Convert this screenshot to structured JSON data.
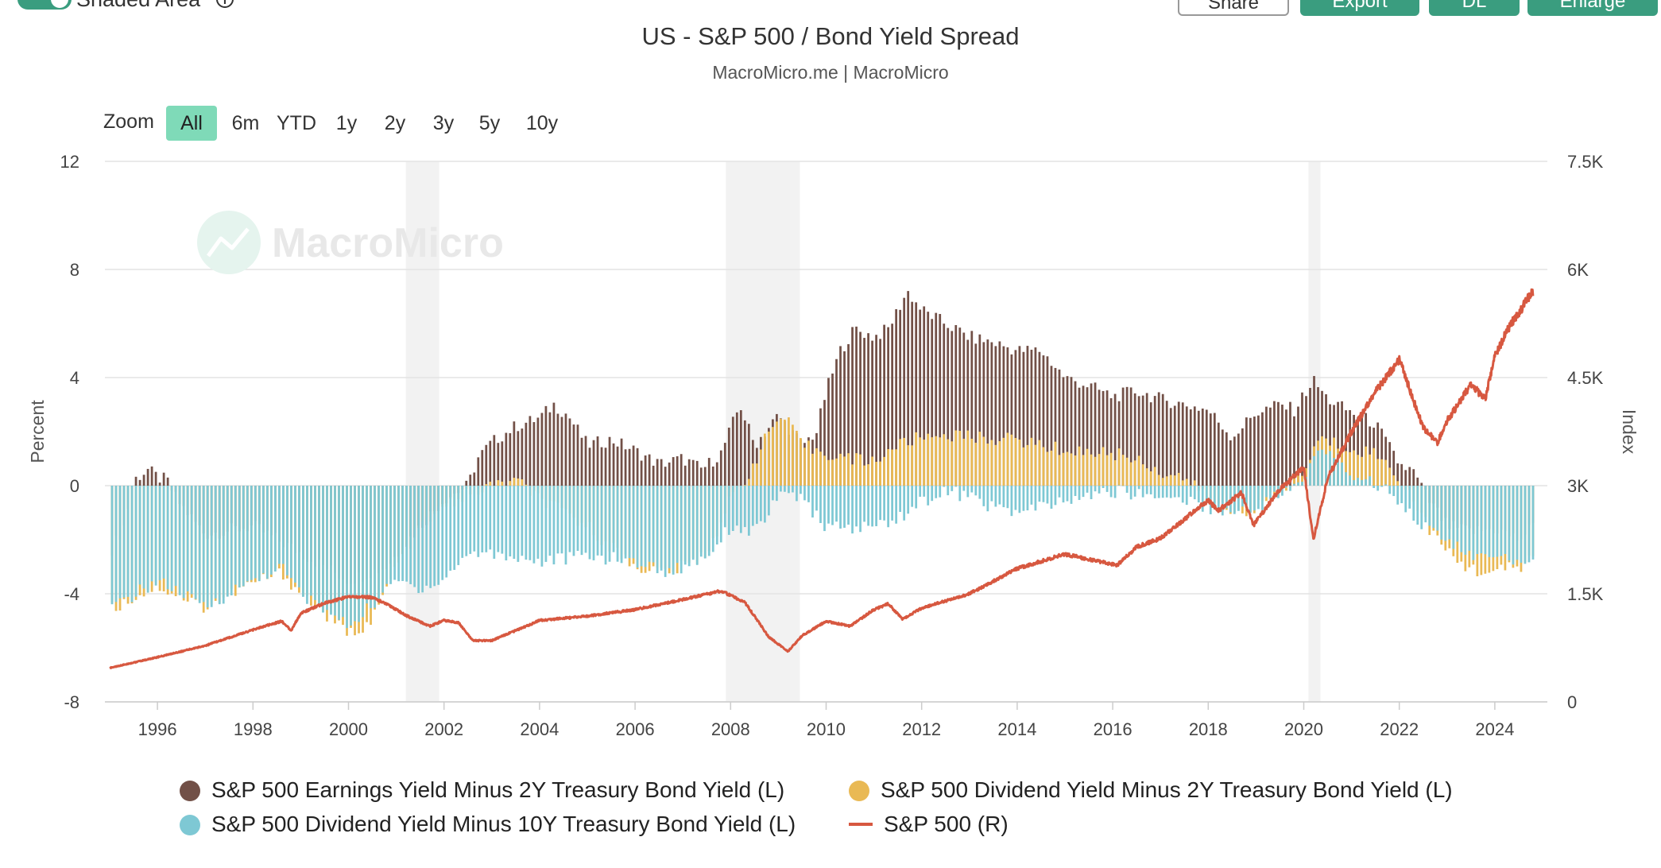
{
  "toolbar": {
    "toggle_label": "Shaded Area",
    "share_label": "Share",
    "export_label": "Export",
    "dl_label": "DL",
    "enlarge_label": "Enlarge"
  },
  "zoom": {
    "label": "Zoom",
    "options": [
      "All",
      "6m",
      "YTD",
      "1y",
      "2y",
      "3y",
      "5y",
      "10y"
    ],
    "active": "All"
  },
  "watermark": "MacroMicro",
  "colors": {
    "earn2y": "#725047",
    "div2y": "#e9b954",
    "div10y": "#7ec8d4",
    "sp500": "#d75840",
    "active_zoom": "#7fdab8",
    "button": "#3a9d7f"
  },
  "chart_data": {
    "type": "bar",
    "title": "US - S&P 500 / Bond Yield Spread",
    "subtitle": "MacroMicro.me | MacroMicro",
    "ylabel_left": "Percent",
    "ylabel_right": "Index",
    "ylim_left": [
      -8,
      12
    ],
    "ylim_right": [
      0,
      7500
    ],
    "yticks_left": [
      "12",
      "8",
      "4",
      "0",
      "-4",
      "-8"
    ],
    "yticks_right": [
      "7.5K",
      "6K",
      "4.5K",
      "3K",
      "1.5K",
      "0"
    ],
    "xlim": [
      1994.9,
      2025.1
    ],
    "xticks": [
      "1996",
      "1998",
      "2000",
      "2002",
      "2004",
      "2006",
      "2008",
      "2010",
      "2012",
      "2014",
      "2016",
      "2018",
      "2020",
      "2022",
      "2024"
    ],
    "grid": true,
    "legend_position": "bottom",
    "shaded_periods": [
      [
        2001.2,
        2001.9
      ],
      [
        2007.9,
        2009.45
      ],
      [
        2020.1,
        2020.35
      ]
    ],
    "series": [
      {
        "name": "S&P 500 Earnings Yield Minus 2Y Treasury Bond Yield (L)",
        "kind": "bar",
        "points": [
          [
            1995.0,
            -2.5
          ],
          [
            1995.3,
            -1.5
          ],
          [
            1995.5,
            0.2
          ],
          [
            1995.8,
            0.6
          ],
          [
            1996.0,
            0.3
          ],
          [
            1996.2,
            0.2
          ],
          [
            1996.4,
            -0.5
          ],
          [
            1997.0,
            -1.8
          ],
          [
            1998.0,
            -1.5
          ],
          [
            1999.0,
            -2.5
          ],
          [
            2000.0,
            -3.5
          ],
          [
            2000.8,
            -3.0
          ],
          [
            2001.5,
            -1.5
          ],
          [
            2002.0,
            -0.5
          ],
          [
            2002.5,
            0.0
          ],
          [
            2002.7,
            1.0
          ],
          [
            2003.0,
            1.6
          ],
          [
            2003.5,
            2.2
          ],
          [
            2004.0,
            2.5
          ],
          [
            2004.3,
            3.0
          ],
          [
            2004.6,
            2.6
          ],
          [
            2005.0,
            1.5
          ],
          [
            2005.5,
            1.7
          ],
          [
            2006.0,
            1.3
          ],
          [
            2006.5,
            0.8
          ],
          [
            2007.0,
            1.0
          ],
          [
            2007.4,
            0.6
          ],
          [
            2007.8,
            1.2
          ],
          [
            2008.2,
            3.0
          ],
          [
            2008.5,
            1.5
          ],
          [
            2009.0,
            2.6
          ],
          [
            2009.5,
            1.5
          ],
          [
            2009.8,
            2.0
          ],
          [
            2010.0,
            3.5
          ],
          [
            2010.3,
            5.0
          ],
          [
            2010.6,
            5.8
          ],
          [
            2011.0,
            5.5
          ],
          [
            2011.3,
            5.8
          ],
          [
            2011.7,
            7.2
          ],
          [
            2012.0,
            6.5
          ],
          [
            2012.5,
            6.0
          ],
          [
            2013.0,
            5.5
          ],
          [
            2013.5,
            5.3
          ],
          [
            2014.0,
            5.0
          ],
          [
            2014.5,
            5.0
          ],
          [
            2015.0,
            4.0
          ],
          [
            2015.5,
            3.7
          ],
          [
            2016.0,
            3.3
          ],
          [
            2016.5,
            3.5
          ],
          [
            2017.0,
            3.2
          ],
          [
            2017.5,
            3.0
          ],
          [
            2018.0,
            2.8
          ],
          [
            2018.5,
            1.8
          ],
          [
            2019.0,
            2.7
          ],
          [
            2019.5,
            3.0
          ],
          [
            2019.8,
            2.8
          ],
          [
            2020.2,
            3.9
          ],
          [
            2020.5,
            3.2
          ],
          [
            2021.0,
            2.7
          ],
          [
            2021.5,
            2.3
          ],
          [
            2022.0,
            0.8
          ],
          [
            2022.3,
            0.5
          ],
          [
            2022.6,
            -0.5
          ],
          [
            2023.0,
            -1.5
          ],
          [
            2023.5,
            -1.7
          ],
          [
            2024.0,
            -1.6
          ],
          [
            2024.5,
            -2.0
          ],
          [
            2024.8,
            -1.5
          ]
        ]
      },
      {
        "name": "S&P 500 Dividend Yield Minus 2Y Treasury Bond Yield (L)",
        "kind": "bar",
        "points": [
          [
            1995.0,
            -4.6
          ],
          [
            1996.0,
            -3.7
          ],
          [
            1997.0,
            -4.5
          ],
          [
            1998.0,
            -3.6
          ],
          [
            1998.6,
            -3.2
          ],
          [
            1999.0,
            -4.0
          ],
          [
            2000.0,
            -5.5
          ],
          [
            2000.5,
            -5.0
          ],
          [
            2001.0,
            -3.0
          ],
          [
            2001.5,
            -1.5
          ],
          [
            2002.0,
            -0.8
          ],
          [
            2002.5,
            -0.3
          ],
          [
            2003.0,
            0.0
          ],
          [
            2003.5,
            0.2
          ],
          [
            2004.0,
            -0.5
          ],
          [
            2005.0,
            -1.5
          ],
          [
            2006.0,
            -3.0
          ],
          [
            2006.7,
            -3.2
          ],
          [
            2007.0,
            -3.0
          ],
          [
            2007.5,
            -2.5
          ],
          [
            2008.0,
            -0.5
          ],
          [
            2008.4,
            0.5
          ],
          [
            2008.8,
            2.0
          ],
          [
            2009.1,
            2.6
          ],
          [
            2009.5,
            1.5
          ],
          [
            2010.0,
            1.2
          ],
          [
            2010.5,
            1.0
          ],
          [
            2011.0,
            0.9
          ],
          [
            2011.5,
            1.5
          ],
          [
            2012.0,
            1.8
          ],
          [
            2012.5,
            1.9
          ],
          [
            2013.0,
            1.8
          ],
          [
            2014.0,
            1.7
          ],
          [
            2015.0,
            1.3
          ],
          [
            2016.0,
            1.2
          ],
          [
            2016.5,
            1.0
          ],
          [
            2017.0,
            0.5
          ],
          [
            2017.5,
            0.3
          ],
          [
            2018.0,
            -0.5
          ],
          [
            2018.5,
            -1.0
          ],
          [
            2019.0,
            -0.8
          ],
          [
            2019.5,
            -0.3
          ],
          [
            2020.0,
            0.5
          ],
          [
            2020.3,
            1.7
          ],
          [
            2020.6,
            1.6
          ],
          [
            2021.0,
            1.4
          ],
          [
            2021.5,
            1.2
          ],
          [
            2022.0,
            0.3
          ],
          [
            2022.3,
            -0.5
          ],
          [
            2022.6,
            -1.5
          ],
          [
            2023.0,
            -2.5
          ],
          [
            2023.5,
            -3.1
          ],
          [
            2024.0,
            -3.2
          ],
          [
            2024.5,
            -3.0
          ],
          [
            2024.8,
            -2.7
          ]
        ]
      },
      {
        "name": "S&P 500 Dividend Yield Minus 10Y Treasury Bond Yield (L)",
        "kind": "bar",
        "points": [
          [
            1995.0,
            -4.6
          ],
          [
            1996.0,
            -3.5
          ],
          [
            1997.0,
            -4.5
          ],
          [
            1998.0,
            -3.5
          ],
          [
            1998.6,
            -3.0
          ],
          [
            1999.0,
            -4.0
          ],
          [
            2000.0,
            -5.2
          ],
          [
            2000.5,
            -4.4
          ],
          [
            2001.0,
            -3.5
          ],
          [
            2001.5,
            -3.8
          ],
          [
            2002.0,
            -3.5
          ],
          [
            2002.5,
            -2.5
          ],
          [
            2003.0,
            -2.5
          ],
          [
            2004.0,
            -2.8
          ],
          [
            2005.0,
            -2.6
          ],
          [
            2006.0,
            -2.8
          ],
          [
            2006.7,
            -3.2
          ],
          [
            2007.0,
            -3.0
          ],
          [
            2007.5,
            -2.6
          ],
          [
            2008.0,
            -1.5
          ],
          [
            2008.5,
            -1.7
          ],
          [
            2009.0,
            -0.5
          ],
          [
            2009.3,
            -0.2
          ],
          [
            2009.6,
            -0.8
          ],
          [
            2010.0,
            -1.5
          ],
          [
            2010.5,
            -1.6
          ],
          [
            2011.0,
            -1.5
          ],
          [
            2011.5,
            -1.2
          ],
          [
            2012.0,
            -0.6
          ],
          [
            2012.5,
            -0.2
          ],
          [
            2013.0,
            -0.4
          ],
          [
            2013.5,
            -0.8
          ],
          [
            2014.0,
            -1.0
          ],
          [
            2015.0,
            -0.6
          ],
          [
            2016.0,
            -0.2
          ],
          [
            2016.5,
            -0.3
          ],
          [
            2017.0,
            -0.4
          ],
          [
            2017.5,
            -0.5
          ],
          [
            2018.0,
            -0.8
          ],
          [
            2018.5,
            -1.0
          ],
          [
            2019.0,
            -0.8
          ],
          [
            2019.5,
            -0.3
          ],
          [
            2020.0,
            0.1
          ],
          [
            2020.3,
            1.4
          ],
          [
            2020.6,
            1.2
          ],
          [
            2021.0,
            0.4
          ],
          [
            2021.5,
            0.1
          ],
          [
            2022.0,
            -0.5
          ],
          [
            2022.5,
            -1.5
          ],
          [
            2023.0,
            -2.0
          ],
          [
            2023.5,
            -2.6
          ],
          [
            2024.0,
            -2.7
          ],
          [
            2024.5,
            -2.8
          ],
          [
            2024.8,
            -2.6
          ]
        ]
      },
      {
        "name": "S&P 500 (R)",
        "kind": "line",
        "points": [
          [
            1995.0,
            470
          ],
          [
            1996.0,
            620
          ],
          [
            1997.0,
            780
          ],
          [
            1998.0,
            1000
          ],
          [
            1998.6,
            1120
          ],
          [
            1998.8,
            990
          ],
          [
            1999.0,
            1230
          ],
          [
            1999.5,
            1370
          ],
          [
            2000.0,
            1460
          ],
          [
            2000.5,
            1450
          ],
          [
            2000.9,
            1320
          ],
          [
            2001.2,
            1200
          ],
          [
            2001.7,
            1050
          ],
          [
            2002.0,
            1130
          ],
          [
            2002.3,
            1100
          ],
          [
            2002.6,
            850
          ],
          [
            2003.0,
            850
          ],
          [
            2003.5,
            990
          ],
          [
            2004.0,
            1130
          ],
          [
            2005.0,
            1190
          ],
          [
            2006.0,
            1280
          ],
          [
            2007.0,
            1420
          ],
          [
            2007.8,
            1540
          ],
          [
            2008.3,
            1380
          ],
          [
            2008.8,
            900
          ],
          [
            2009.2,
            700
          ],
          [
            2009.5,
            920
          ],
          [
            2010.0,
            1120
          ],
          [
            2010.5,
            1050
          ],
          [
            2011.0,
            1280
          ],
          [
            2011.3,
            1360
          ],
          [
            2011.6,
            1150
          ],
          [
            2012.0,
            1300
          ],
          [
            2013.0,
            1500
          ],
          [
            2014.0,
            1850
          ],
          [
            2015.0,
            2050
          ],
          [
            2015.7,
            1950
          ],
          [
            2016.1,
            1900
          ],
          [
            2016.5,
            2150
          ],
          [
            2017.0,
            2270
          ],
          [
            2018.0,
            2800
          ],
          [
            2018.2,
            2650
          ],
          [
            2018.7,
            2900
          ],
          [
            2018.95,
            2450
          ],
          [
            2019.5,
            2950
          ],
          [
            2020.0,
            3250
          ],
          [
            2020.2,
            2250
          ],
          [
            2020.5,
            3100
          ],
          [
            2021.0,
            3750
          ],
          [
            2021.5,
            4300
          ],
          [
            2022.0,
            4750
          ],
          [
            2022.5,
            3800
          ],
          [
            2022.8,
            3600
          ],
          [
            2023.0,
            3900
          ],
          [
            2023.5,
            4400
          ],
          [
            2023.8,
            4200
          ],
          [
            2024.0,
            4800
          ],
          [
            2024.3,
            5200
          ],
          [
            2024.6,
            5500
          ],
          [
            2024.8,
            5700
          ]
        ]
      }
    ]
  }
}
